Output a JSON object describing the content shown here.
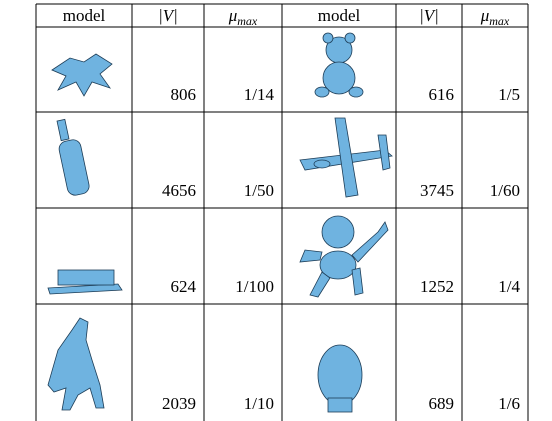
{
  "table": {
    "header": {
      "model": "model",
      "v": "|V|",
      "mu": "μ",
      "mu_sub": "max"
    },
    "rows": [
      [
        {
          "v": "806",
          "mu": "1/14"
        },
        {
          "v": "616",
          "mu": "1/5"
        }
      ],
      [
        {
          "v": "4656",
          "mu": "1/50"
        },
        {
          "v": "3745",
          "mu": "1/60"
        }
      ],
      [
        {
          "v": "624",
          "mu": "1/100"
        },
        {
          "v": "1252",
          "mu": "1/4"
        }
      ],
      [
        {
          "v": "2039",
          "mu": "1/10"
        },
        {
          "v": "689",
          "mu": "1/6"
        }
      ]
    ]
  }
}
